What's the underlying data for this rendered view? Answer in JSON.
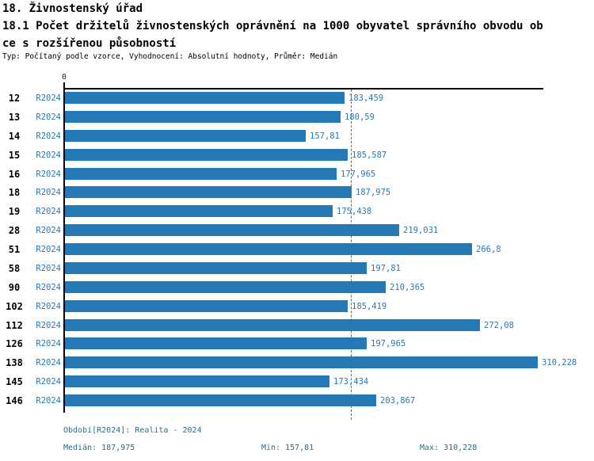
{
  "header": {
    "title": "18. Živnostenský úřad",
    "subtitle_line1": "18.1 Počet držitelů živnostenských oprávnění na 1000 obyvatel správního obvodu ob",
    "subtitle_line2": "ce s rozšířenou působností",
    "meta": "Typ: Počítaný podle vzorce, Vyhodnocení: Absolutní hodnoty, Průměr: Medián"
  },
  "chart_data": {
    "type": "bar",
    "orientation": "horizontal",
    "title": "Počet držitelů živnostenských oprávnění na 1000 obyvatel správního obvodu obce s rozšířenou působností",
    "series_label": "R2024",
    "categories": [
      "12",
      "13",
      "14",
      "15",
      "16",
      "18",
      "19",
      "28",
      "51",
      "58",
      "90",
      "102",
      "112",
      "126",
      "138",
      "145",
      "146"
    ],
    "values": [
      183.459,
      180.59,
      157.81,
      185.587,
      177.965,
      187.975,
      175.438,
      219.031,
      266.8,
      197.81,
      210.365,
      185.419,
      272.08,
      197.965,
      310.228,
      173.434,
      203.867
    ],
    "value_labels": [
      "183,459",
      "180,59",
      "157,81",
      "185,587",
      "177,965",
      "187,975",
      "175,438",
      "219,031",
      "266,8",
      "197,81",
      "210,365",
      "185,419",
      "272,08",
      "197,965",
      "310,228",
      "173,434",
      "203,867"
    ],
    "axis_zero_label": "0",
    "xlim": [
      0,
      314
    ],
    "median_line_value": 187.975,
    "bar_color": "#2478b4",
    "grid": false,
    "legend_position": "none"
  },
  "footer": {
    "period": "Období[R2024]: Realita - 2024",
    "median": "Medián: 187,975",
    "min": "Min: 157,81",
    "max": "Max: 310,228"
  }
}
